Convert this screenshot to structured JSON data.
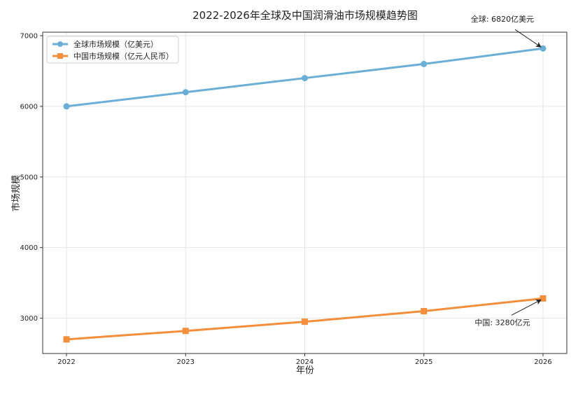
{
  "chart_data": {
    "type": "line",
    "title": "2022-2026年全球及中国润滑油市场规模趋势图",
    "xlabel": "年份",
    "ylabel": "市场规模",
    "x": [
      2022,
      2023,
      2024,
      2025,
      2026
    ],
    "x_tick_labels": [
      "2022",
      "2023",
      "2024",
      "2025",
      "2026"
    ],
    "ylim": [
      2500,
      7050
    ],
    "y_ticks": [
      3000,
      4000,
      5000,
      6000,
      7000
    ],
    "y_tick_labels": [
      "3000",
      "4000",
      "5000",
      "6000",
      "7000"
    ],
    "grid": true,
    "legend_position": "top-left",
    "series": [
      {
        "name": "全球市场规模（亿美元）",
        "values": [
          6000,
          6200,
          6400,
          6600,
          6820
        ],
        "color": "#6baed6",
        "marker": "circle"
      },
      {
        "name": "中国市场规模（亿元人民币）",
        "values": [
          2700,
          2820,
          2950,
          3100,
          3280
        ],
        "color": "#f28e3c",
        "marker": "square"
      }
    ],
    "annotations": [
      {
        "text": "全球: 6820亿美元",
        "series": 0,
        "x": 2026,
        "y": 6820
      },
      {
        "text": "中国: 3280亿元",
        "series": 1,
        "x": 2026,
        "y": 3280
      }
    ]
  }
}
